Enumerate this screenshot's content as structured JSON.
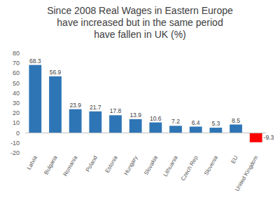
{
  "chart_data": {
    "type": "bar",
    "title": "Since 2008 Real Wages in Eastern Europe\nhave increased but in the same period\nhave fallen in UK (%)",
    "categories": [
      "Latvia",
      "Bulgaria",
      "Romania",
      "Poland",
      "Estonia",
      "Hungary",
      "Slovakia",
      "Lithuania",
      "Czech Rep",
      "Slovenia",
      "EU",
      "United Kingdom"
    ],
    "values": [
      68.3,
      56.9,
      23.9,
      21.7,
      17.8,
      13.9,
      10.6,
      7.2,
      6.4,
      5.3,
      8.5,
      -9.3
    ],
    "colors": [
      "#2e75b6",
      "#2e75b6",
      "#2e75b6",
      "#2e75b6",
      "#2e75b6",
      "#2e75b6",
      "#2e75b6",
      "#2e75b6",
      "#2e75b6",
      "#2e75b6",
      "#2e75b6",
      "#ff0000"
    ],
    "ylim": [
      -20,
      80
    ],
    "yticks": [
      -20,
      -10,
      0,
      10,
      20,
      30,
      40,
      50,
      60,
      70,
      80
    ],
    "grid": false,
    "data_labels": true
  }
}
